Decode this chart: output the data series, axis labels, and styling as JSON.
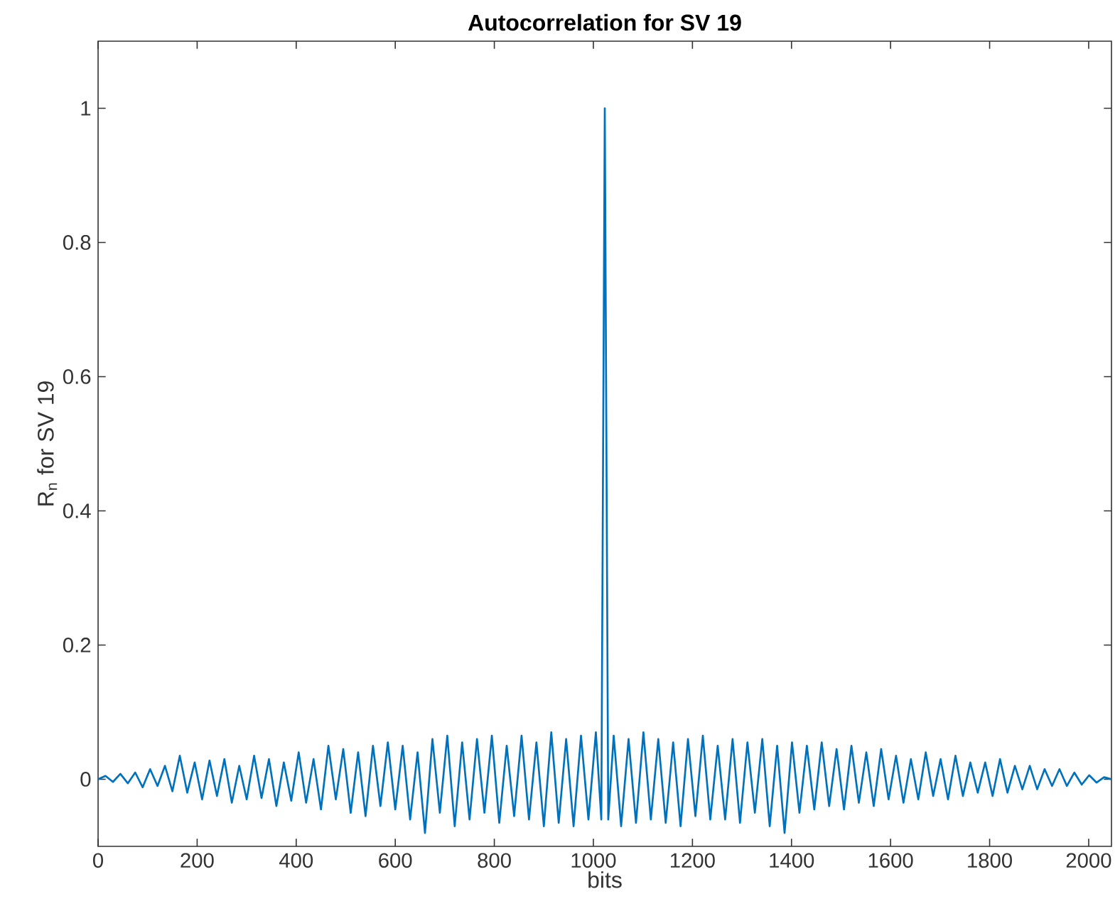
{
  "chart_data": {
    "type": "line",
    "title": "**Autocorrelation for SV 19**",
    "xlabel": "bits",
    "ylabel": "R$_{n}$ for SV 19",
    "xlim": [
      0,
      2046
    ],
    "ylim": [
      -0.1,
      1.1
    ],
    "xticks": [
      0,
      200,
      400,
      600,
      800,
      1000,
      1200,
      1400,
      1600,
      1800,
      2000
    ],
    "yticks": [
      0,
      0.2,
      0.4,
      0.6,
      0.8,
      1
    ],
    "grid": false,
    "marker": "none",
    "line_style": "solid",
    "series": [
      {
        "color": "#0072bd",
        "x": [
          0,
          15,
          30,
          45,
          60,
          75,
          90,
          105,
          120,
          135,
          150,
          165,
          180,
          195,
          210,
          225,
          240,
          255,
          270,
          285,
          300,
          315,
          330,
          345,
          360,
          375,
          390,
          405,
          420,
          435,
          450,
          465,
          480,
          495,
          510,
          525,
          540,
          555,
          570,
          585,
          600,
          615,
          630,
          645,
          660,
          675,
          690,
          705,
          720,
          735,
          750,
          765,
          780,
          795,
          810,
          825,
          840,
          855,
          870,
          885,
          900,
          915,
          930,
          945,
          960,
          975,
          990,
          1005,
          1016,
          1023,
          1030,
          1041,
          1056,
          1071,
          1086,
          1101,
          1116,
          1131,
          1146,
          1161,
          1176,
          1191,
          1206,
          1221,
          1236,
          1251,
          1266,
          1281,
          1296,
          1311,
          1326,
          1341,
          1356,
          1371,
          1386,
          1401,
          1416,
          1431,
          1446,
          1461,
          1476,
          1491,
          1506,
          1521,
          1536,
          1551,
          1566,
          1581,
          1596,
          1611,
          1626,
          1641,
          1656,
          1671,
          1686,
          1701,
          1716,
          1731,
          1746,
          1761,
          1776,
          1791,
          1806,
          1821,
          1836,
          1851,
          1866,
          1881,
          1896,
          1911,
          1926,
          1941,
          1956,
          1971,
          1986,
          2001,
          2016,
          2031,
          2046
        ],
        "values": [
          0,
          0.005,
          -0.004,
          0.008,
          -0.006,
          0.01,
          -0.012,
          0.015,
          -0.01,
          0.02,
          -0.018,
          0.035,
          -0.02,
          0.025,
          -0.03,
          0.028,
          -0.025,
          0.03,
          -0.035,
          0.02,
          -0.03,
          0.035,
          -0.028,
          0.03,
          -0.04,
          0.025,
          -0.032,
          0.04,
          -0.035,
          0.03,
          -0.045,
          0.05,
          -0.03,
          0.045,
          -0.05,
          0.04,
          -0.055,
          0.05,
          -0.04,
          0.055,
          -0.045,
          0.05,
          -0.06,
          0.04,
          -0.08,
          0.06,
          -0.05,
          0.065,
          -0.07,
          0.055,
          -0.06,
          0.06,
          -0.05,
          0.065,
          -0.065,
          0.05,
          -0.055,
          0.065,
          -0.06,
          0.055,
          -0.07,
          0.07,
          -0.065,
          0.06,
          -0.07,
          0.065,
          -0.06,
          0.07,
          -0.06,
          1,
          -0.06,
          0.065,
          -0.07,
          0.06,
          -0.065,
          0.07,
          -0.06,
          0.06,
          -0.065,
          0.055,
          -0.07,
          0.06,
          -0.055,
          0.065,
          -0.06,
          0.05,
          -0.06,
          0.06,
          -0.065,
          0.055,
          -0.05,
          0.06,
          -0.07,
          0.05,
          -0.08,
          0.055,
          -0.05,
          0.05,
          -0.045,
          0.055,
          -0.04,
          0.045,
          -0.045,
          0.05,
          -0.035,
          0.04,
          -0.04,
          0.045,
          -0.03,
          0.035,
          -0.035,
          0.03,
          -0.03,
          0.04,
          -0.025,
          0.03,
          -0.03,
          0.035,
          -0.025,
          0.025,
          -0.02,
          0.025,
          -0.025,
          0.03,
          -0.02,
          0.02,
          -0.015,
          0.02,
          -0.015,
          0.015,
          -0.01,
          0.015,
          -0.01,
          0.01,
          -0.008,
          0.006,
          -0.005,
          0.003,
          0
        ]
      }
    ]
  }
}
